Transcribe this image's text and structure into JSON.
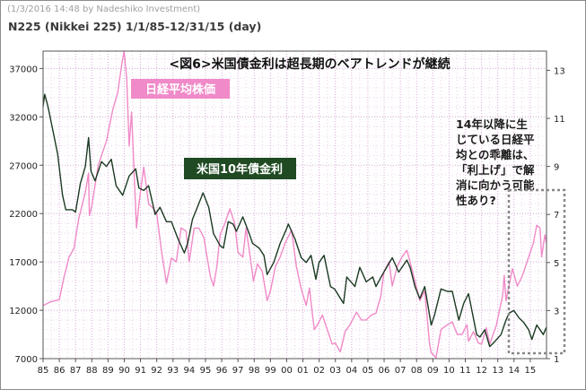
{
  "header": {
    "stamp": "(1/3/2016 14:48 by Nadeshiko Investment)",
    "symbol_line": "N225 (Nikkei 225)  1/1/85-12/31/15 (day)"
  },
  "chart_data": {
    "type": "line",
    "title": "<図6>米国債金利は超長期のベアトレンドが継続",
    "x_ticks": [
      "85",
      "86",
      "87",
      "88",
      "89",
      "90",
      "91",
      "92",
      "93",
      "94",
      "95",
      "96",
      "97",
      "98",
      "99",
      "00",
      "01",
      "02",
      "03",
      "04",
      "05",
      "06",
      "07",
      "08",
      "09",
      "10",
      "11",
      "12",
      "13",
      "14",
      "15"
    ],
    "y_left": {
      "ticks": [
        7000,
        12000,
        17000,
        22000,
        27000,
        32000,
        37000
      ],
      "range": [
        7000,
        38800
      ]
    },
    "y_right": {
      "ticks": [
        1,
        3,
        5,
        7,
        9,
        11,
        13
      ],
      "range": [
        1,
        13.8
      ]
    },
    "grid": true,
    "series": [
      {
        "name": "日経平均株価",
        "axis": "left",
        "color": "#f08ac8",
        "points": [
          [
            1985.0,
            12500
          ],
          [
            1985.5,
            12900
          ],
          [
            1986.0,
            13100
          ],
          [
            1986.3,
            15500
          ],
          [
            1986.6,
            17500
          ],
          [
            1986.9,
            18400
          ],
          [
            1987.2,
            21500
          ],
          [
            1987.6,
            24200
          ],
          [
            1987.8,
            26200
          ],
          [
            1987.85,
            21800
          ],
          [
            1988.0,
            22800
          ],
          [
            1988.4,
            27000
          ],
          [
            1988.9,
            29500
          ],
          [
            1989.3,
            32800
          ],
          [
            1989.6,
            34500
          ],
          [
            1989.85,
            37500
          ],
          [
            1989.99,
            38800
          ],
          [
            1990.15,
            36000
          ],
          [
            1990.3,
            29000
          ],
          [
            1990.45,
            32500
          ],
          [
            1990.75,
            20500
          ],
          [
            1990.9,
            23000
          ],
          [
            1991.2,
            26800
          ],
          [
            1991.5,
            23000
          ],
          [
            1991.8,
            22500
          ],
          [
            1992.0,
            22000
          ],
          [
            1992.3,
            18000
          ],
          [
            1992.6,
            14800
          ],
          [
            1992.9,
            17400
          ],
          [
            1993.2,
            17000
          ],
          [
            1993.5,
            20500
          ],
          [
            1993.8,
            20200
          ],
          [
            1994.0,
            17000
          ],
          [
            1994.3,
            20500
          ],
          [
            1994.6,
            20500
          ],
          [
            1994.9,
            19500
          ],
          [
            1995.3,
            15500
          ],
          [
            1995.5,
            14500
          ],
          [
            1995.7,
            16500
          ],
          [
            1995.9,
            19800
          ],
          [
            1996.2,
            21000
          ],
          [
            1996.5,
            22500
          ],
          [
            1996.8,
            21000
          ],
          [
            1997.0,
            18000
          ],
          [
            1997.3,
            17500
          ],
          [
            1997.5,
            20500
          ],
          [
            1997.8,
            17000
          ],
          [
            1997.95,
            15000
          ],
          [
            1998.2,
            16800
          ],
          [
            1998.5,
            16000
          ],
          [
            1998.8,
            13000
          ],
          [
            1999.0,
            14000
          ],
          [
            1999.3,
            16500
          ],
          [
            1999.6,
            17500
          ],
          [
            1999.9,
            18900
          ],
          [
            2000.3,
            20300
          ],
          [
            2000.6,
            16500
          ],
          [
            2000.9,
            14200
          ],
          [
            2001.2,
            12500
          ],
          [
            2001.4,
            14300
          ],
          [
            2001.7,
            10000
          ],
          [
            2001.9,
            10500
          ],
          [
            2002.2,
            11500
          ],
          [
            2002.5,
            10000
          ],
          [
            2002.8,
            8500
          ],
          [
            2003.0,
            8600
          ],
          [
            2003.3,
            7700
          ],
          [
            2003.6,
            9800
          ],
          [
            2003.9,
            10500
          ],
          [
            2004.3,
            11800
          ],
          [
            2004.6,
            11000
          ],
          [
            2004.9,
            11000
          ],
          [
            2005.2,
            11500
          ],
          [
            2005.5,
            11700
          ],
          [
            2005.8,
            13500
          ],
          [
            2005.99,
            16000
          ],
          [
            2006.3,
            17000
          ],
          [
            2006.5,
            14500
          ],
          [
            2006.8,
            16500
          ],
          [
            2007.1,
            17500
          ],
          [
            2007.4,
            18200
          ],
          [
            2007.6,
            17000
          ],
          [
            2007.9,
            15000
          ],
          [
            2008.2,
            13000
          ],
          [
            2008.5,
            14000
          ],
          [
            2008.8,
            8500
          ],
          [
            2008.9,
            7600
          ],
          [
            2009.2,
            7100
          ],
          [
            2009.5,
            10000
          ],
          [
            2009.9,
            10500
          ],
          [
            2010.2,
            10800
          ],
          [
            2010.5,
            9500
          ],
          [
            2010.8,
            9500
          ],
          [
            2011.1,
            10500
          ],
          [
            2011.2,
            8800
          ],
          [
            2011.5,
            9800
          ],
          [
            2011.8,
            8600
          ],
          [
            2012.0,
            8500
          ],
          [
            2012.3,
            10200
          ],
          [
            2012.5,
            8500
          ],
          [
            2012.9,
            10400
          ],
          [
            2013.3,
            13500
          ],
          [
            2013.4,
            15600
          ],
          [
            2013.5,
            13000
          ],
          [
            2013.9,
            16300
          ],
          [
            2014.2,
            14500
          ],
          [
            2014.5,
            15500
          ],
          [
            2014.9,
            17500
          ],
          [
            2015.2,
            19000
          ],
          [
            2015.4,
            20800
          ],
          [
            2015.6,
            20500
          ],
          [
            2015.7,
            17500
          ],
          [
            2015.9,
            19800
          ],
          [
            2015.99,
            19000
          ]
        ]
      },
      {
        "name": "米国10年債金利",
        "axis": "right",
        "color": "#1b3a22",
        "points": [
          [
            1985.0,
            11.5
          ],
          [
            1985.1,
            12.0
          ],
          [
            1985.3,
            11.5
          ],
          [
            1985.6,
            10.5
          ],
          [
            1985.9,
            9.5
          ],
          [
            1986.2,
            7.8
          ],
          [
            1986.4,
            7.2
          ],
          [
            1986.8,
            7.2
          ],
          [
            1987.0,
            7.1
          ],
          [
            1987.3,
            8.3
          ],
          [
            1987.6,
            9.0
          ],
          [
            1987.8,
            10.2
          ],
          [
            1987.95,
            8.8
          ],
          [
            1988.2,
            8.4
          ],
          [
            1988.6,
            9.2
          ],
          [
            1988.9,
            9.0
          ],
          [
            1989.2,
            9.3
          ],
          [
            1989.5,
            8.2
          ],
          [
            1989.9,
            7.8
          ],
          [
            1990.3,
            8.6
          ],
          [
            1990.7,
            8.9
          ],
          [
            1990.9,
            8.1
          ],
          [
            1991.2,
            8.0
          ],
          [
            1991.5,
            8.2
          ],
          [
            1991.9,
            7.0
          ],
          [
            1992.2,
            7.3
          ],
          [
            1992.6,
            6.7
          ],
          [
            1992.9,
            6.7
          ],
          [
            1993.3,
            6.0
          ],
          [
            1993.7,
            5.4
          ],
          [
            1993.9,
            5.8
          ],
          [
            1994.2,
            6.8
          ],
          [
            1994.5,
            7.3
          ],
          [
            1994.85,
            7.9
          ],
          [
            1995.2,
            7.3
          ],
          [
            1995.5,
            6.2
          ],
          [
            1995.9,
            5.7
          ],
          [
            1996.1,
            5.6
          ],
          [
            1996.4,
            6.7
          ],
          [
            1996.7,
            6.6
          ],
          [
            1996.9,
            6.3
          ],
          [
            1997.3,
            6.9
          ],
          [
            1997.7,
            6.2
          ],
          [
            1997.9,
            5.8
          ],
          [
            1998.3,
            5.6
          ],
          [
            1998.6,
            5.3
          ],
          [
            1998.8,
            4.5
          ],
          [
            1999.2,
            5.0
          ],
          [
            1999.6,
            5.8
          ],
          [
            1999.99,
            6.4
          ],
          [
            2000.1,
            6.6
          ],
          [
            2000.5,
            6.0
          ],
          [
            2000.9,
            5.2
          ],
          [
            2001.2,
            5.0
          ],
          [
            2001.5,
            5.3
          ],
          [
            2001.8,
            4.3
          ],
          [
            2001.99,
            5.0
          ],
          [
            2002.3,
            5.3
          ],
          [
            2002.7,
            4.0
          ],
          [
            2002.95,
            3.9
          ],
          [
            2003.5,
            3.3
          ],
          [
            2003.7,
            4.4
          ],
          [
            2004.2,
            4.0
          ],
          [
            2004.5,
            4.8
          ],
          [
            2004.9,
            4.2
          ],
          [
            2005.3,
            4.4
          ],
          [
            2005.5,
            4.0
          ],
          [
            2005.9,
            4.5
          ],
          [
            2006.5,
            5.2
          ],
          [
            2006.9,
            4.6
          ],
          [
            2007.4,
            5.1
          ],
          [
            2007.6,
            4.8
          ],
          [
            2007.9,
            4.0
          ],
          [
            2008.2,
            3.5
          ],
          [
            2008.5,
            4.0
          ],
          [
            2008.9,
            2.4
          ],
          [
            2009.1,
            2.8
          ],
          [
            2009.5,
            3.9
          ],
          [
            2009.9,
            3.8
          ],
          [
            2010.2,
            3.8
          ],
          [
            2010.6,
            2.6
          ],
          [
            2010.9,
            3.3
          ],
          [
            2011.2,
            3.7
          ],
          [
            2011.7,
            2.0
          ],
          [
            2011.9,
            1.9
          ],
          [
            2012.2,
            2.2
          ],
          [
            2012.5,
            1.5
          ],
          [
            2012.8,
            1.7
          ],
          [
            2013.2,
            2.0
          ],
          [
            2013.5,
            2.6
          ],
          [
            2013.7,
            2.9
          ],
          [
            2013.99,
            3.0
          ],
          [
            2014.3,
            2.7
          ],
          [
            2014.6,
            2.5
          ],
          [
            2014.9,
            2.2
          ],
          [
            2015.1,
            1.8
          ],
          [
            2015.4,
            2.4
          ],
          [
            2015.6,
            2.2
          ],
          [
            2015.8,
            2.0
          ],
          [
            2015.99,
            2.3
          ]
        ]
      }
    ]
  },
  "annotations": {
    "nikkei_label": "日経平均株価",
    "yield_label": "米国10年債金利",
    "note_lines": [
      "14年以降に生",
      "じている日経平",
      "均との乖離は、",
      "「利上げ」で解",
      "消に向かう可能",
      "性あり?"
    ]
  }
}
